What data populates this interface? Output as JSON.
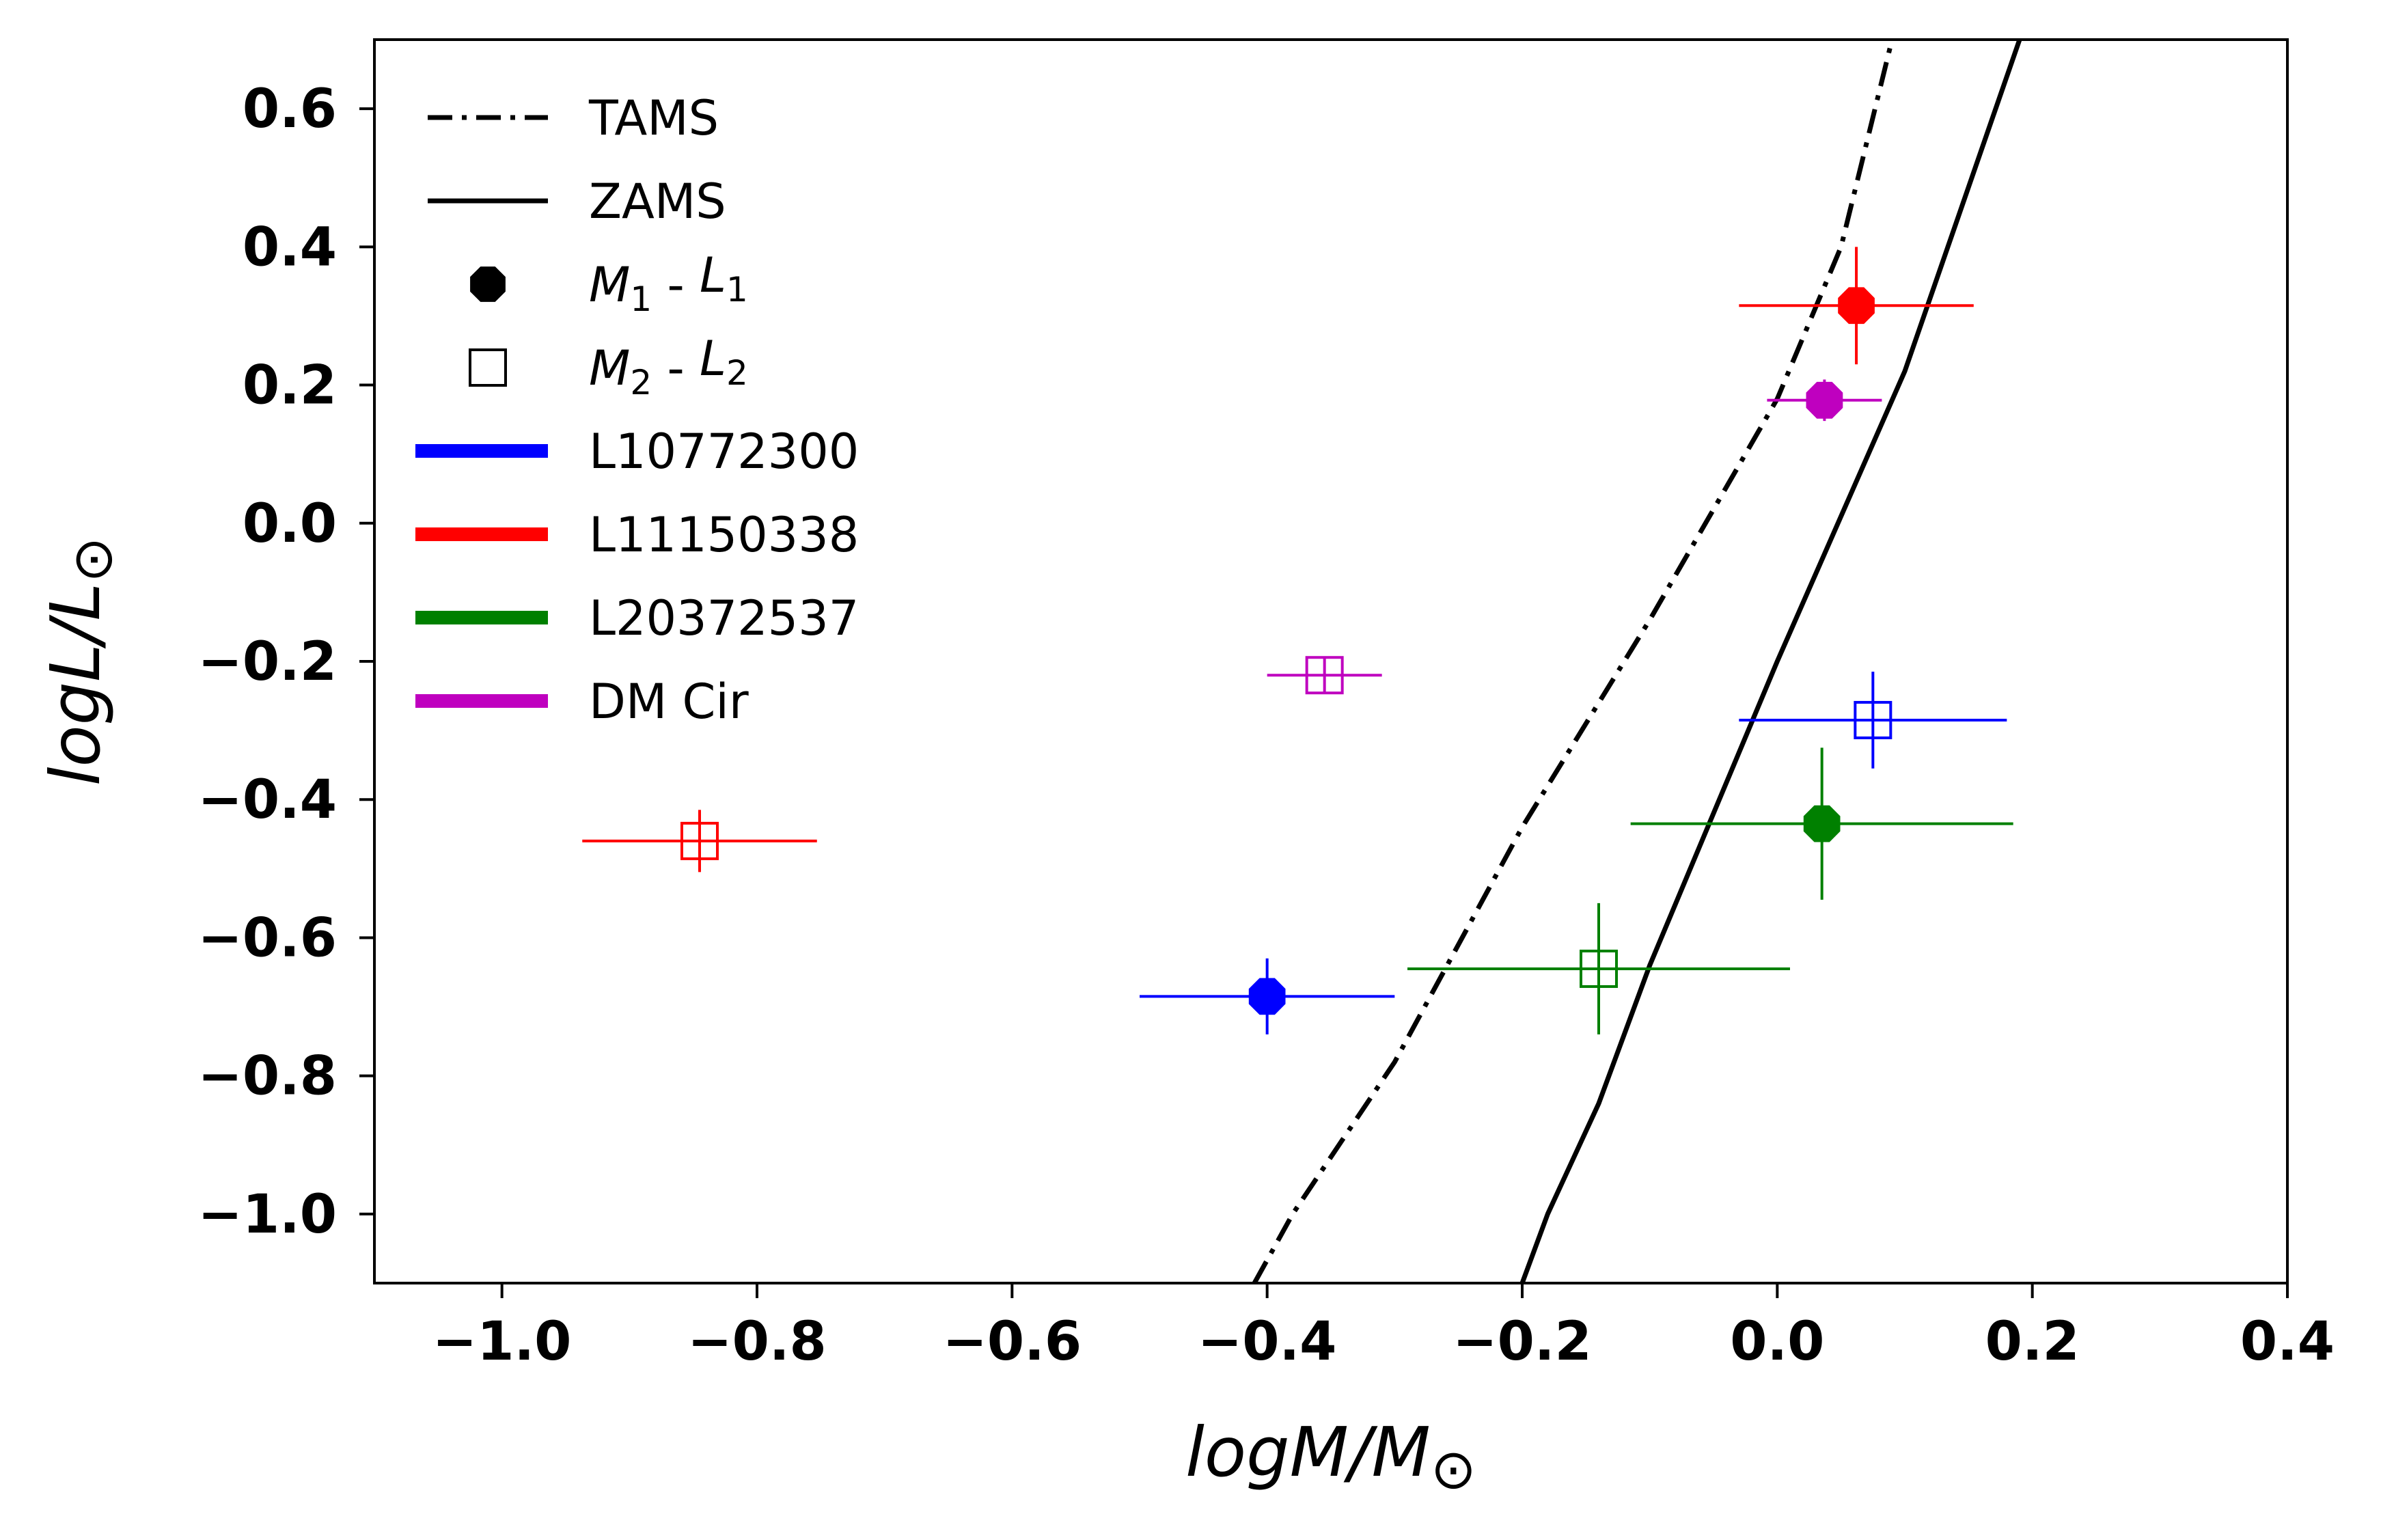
{
  "chart_data": {
    "type": "scatter",
    "xlabel": "logM/M",
    "ylabel": "logL/L",
    "sun_symbol": "⊙",
    "xlim": [
      -1.1,
      0.4
    ],
    "ylim": [
      -1.1,
      0.7
    ],
    "x_ticks": [
      {
        "value": -1.0,
        "label": "−1.0"
      },
      {
        "value": -0.8,
        "label": "−0.8"
      },
      {
        "value": -0.6,
        "label": "−0.6"
      },
      {
        "value": -0.4,
        "label": "−0.4"
      },
      {
        "value": -0.2,
        "label": "−0.2"
      },
      {
        "value": 0.0,
        "label": "0.0"
      },
      {
        "value": 0.2,
        "label": "0.2"
      },
      {
        "value": 0.4,
        "label": "0.4"
      }
    ],
    "y_ticks": [
      {
        "value": 0.6,
        "label": "0.6"
      },
      {
        "value": 0.4,
        "label": "0.4"
      },
      {
        "value": 0.2,
        "label": "0.2"
      },
      {
        "value": 0.0,
        "label": "0.0"
      },
      {
        "value": -0.2,
        "label": "−0.2"
      },
      {
        "value": -0.4,
        "label": "−0.4"
      },
      {
        "value": -0.6,
        "label": "−0.6"
      },
      {
        "value": -0.8,
        "label": "−0.8"
      },
      {
        "value": -1.0,
        "label": "−1.0"
      }
    ],
    "grid": false,
    "lines": [
      {
        "name": "TAMS",
        "style": "dashdot",
        "color": "#000000",
        "points": [
          [
            -0.41,
            -1.1
          ],
          [
            -0.38,
            -1.0
          ],
          [
            -0.3,
            -0.78
          ],
          [
            -0.2,
            -0.44
          ],
          [
            -0.1,
            -0.14
          ],
          [
            0.0,
            0.18
          ],
          [
            0.05,
            0.4
          ],
          [
            0.09,
            0.7
          ]
        ]
      },
      {
        "name": "ZAMS",
        "style": "solid",
        "color": "#000000",
        "points": [
          [
            -0.2,
            -1.1
          ],
          [
            -0.18,
            -1.0
          ],
          [
            -0.14,
            -0.84
          ],
          [
            -0.1,
            -0.64
          ],
          [
            0.0,
            -0.2
          ],
          [
            0.1,
            0.22
          ],
          [
            0.13,
            0.38
          ],
          [
            0.19,
            0.7
          ]
        ]
      }
    ],
    "series": [
      {
        "name": "L10772300",
        "color": "#0000ff",
        "primary": {
          "x": -0.4,
          "y": -0.685,
          "xerr": 0.1,
          "yerr": 0.055
        },
        "secondary": {
          "x": 0.075,
          "y": -0.285,
          "xerr": 0.105,
          "yerr": 0.07
        }
      },
      {
        "name": "L11150338",
        "color": "#ff0000",
        "primary": {
          "x": 0.062,
          "y": 0.315,
          "xerr": 0.092,
          "yerr": 0.085
        },
        "secondary": {
          "x": -0.845,
          "y": -0.46,
          "xerr": 0.092,
          "yerr": 0.045
        }
      },
      {
        "name": "L20372537",
        "color": "#008000",
        "primary": {
          "x": 0.035,
          "y": -0.435,
          "xerr": 0.15,
          "yerr": 0.11
        },
        "secondary": {
          "x": -0.14,
          "y": -0.645,
          "xerr": 0.15,
          "yerr": 0.095
        }
      },
      {
        "name": "DM Cir",
        "color": "#bf00bf",
        "primary": {
          "x": 0.037,
          "y": 0.178,
          "xerr": 0.045,
          "yerr": 0.03
        },
        "secondary": {
          "x": -0.355,
          "y": -0.22,
          "xerr": 0.045,
          "yerr": 0.025
        }
      }
    ],
    "legend": {
      "position": "top-left",
      "entries": [
        {
          "label": "TAMS",
          "kind": "dashdot-line"
        },
        {
          "label": "ZAMS",
          "kind": "solid-line"
        },
        {
          "kind": "filled-marker",
          "sym1": "M",
          "sub1": "1",
          "sep": " - ",
          "sym2": "L",
          "sub2": "1"
        },
        {
          "kind": "open-square",
          "sym1": "M",
          "sub1": "2",
          "sep": " - ",
          "sym2": "L",
          "sub2": "2"
        },
        {
          "label": "L10772300",
          "kind": "color-bar",
          "color": "#0000ff"
        },
        {
          "label": "L11150338",
          "kind": "color-bar",
          "color": "#ff0000"
        },
        {
          "label": "L20372537",
          "kind": "color-bar",
          "color": "#008000"
        },
        {
          "label": "DM Cir",
          "kind": "color-bar",
          "color": "#bf00bf"
        }
      ]
    }
  }
}
